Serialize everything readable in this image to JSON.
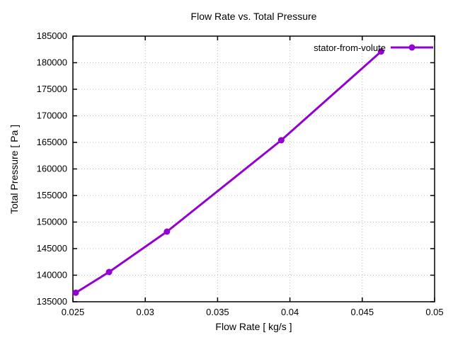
{
  "chart_data": {
    "type": "line",
    "title": "Flow Rate vs. Total Pressure",
    "xlabel": "Flow Rate [ kg/s ]",
    "ylabel": "Total Pressure [ Pa ]",
    "xlim": [
      0.025,
      0.05
    ],
    "ylim": [
      135000,
      185000
    ],
    "x_ticks": [
      0.025,
      0.03,
      0.035,
      0.04,
      0.045,
      0.05
    ],
    "x_tick_labels": [
      "0.025",
      "0.03",
      "0.035",
      "0.04",
      "0.045",
      "0.05"
    ],
    "y_ticks": [
      135000,
      140000,
      145000,
      150000,
      155000,
      160000,
      165000,
      170000,
      175000,
      180000,
      185000
    ],
    "y_tick_labels": [
      "135000",
      "140000",
      "145000",
      "150000",
      "155000",
      "160000",
      "165000",
      "170000",
      "175000",
      "180000",
      "185000"
    ],
    "grid": true,
    "legend_position": "top-right-inside",
    "series": [
      {
        "name": "stator-from-volute",
        "color": "#9400d3",
        "marker": "circle",
        "x": [
          0.0252,
          0.0275,
          0.0315,
          0.0394,
          0.0463
        ],
        "y": [
          136700,
          140600,
          148200,
          165400,
          182100
        ]
      }
    ]
  },
  "colors": {
    "background": "#ffffff",
    "grid": "#b9b9b9",
    "axis": "#000000",
    "text": "#000000"
  }
}
